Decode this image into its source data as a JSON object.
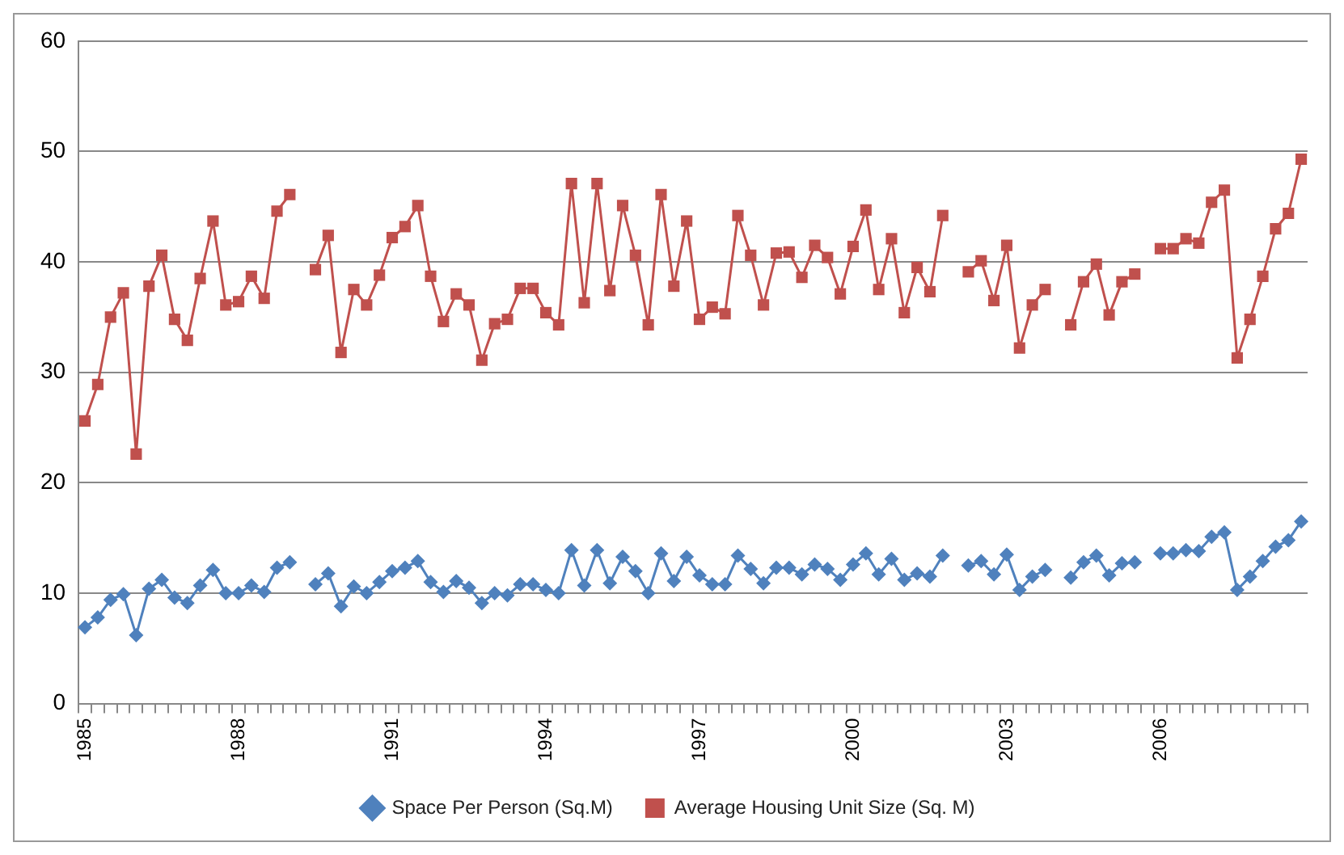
{
  "chart_data": {
    "type": "line",
    "categories": [
      "1985",
      null,
      null,
      null,
      null,
      null,
      null,
      null,
      null,
      null,
      null,
      null,
      "1988",
      null,
      null,
      null,
      null,
      null,
      null,
      null,
      null,
      null,
      null,
      null,
      "1991",
      null,
      null,
      null,
      null,
      null,
      null,
      null,
      null,
      null,
      null,
      null,
      "1994",
      null,
      null,
      null,
      null,
      null,
      null,
      null,
      null,
      null,
      null,
      null,
      "1997",
      null,
      null,
      null,
      null,
      null,
      null,
      null,
      null,
      null,
      null,
      null,
      "2000",
      null,
      null,
      null,
      null,
      null,
      null,
      null,
      null,
      null,
      null,
      null,
      "2003",
      null,
      null,
      null,
      null,
      null,
      null,
      null,
      null,
      null,
      null,
      null,
      "2006",
      null,
      null,
      null,
      null,
      null,
      null,
      null,
      null,
      null,
      null,
      null
    ],
    "series": [
      {
        "name": "Space Per Person (Sq.M)",
        "color": "#4f81bd",
        "marker": "diamond",
        "values": [
          6.9,
          7.8,
          9.4,
          9.9,
          6.2,
          10.4,
          11.2,
          9.6,
          9.1,
          10.7,
          12.1,
          10.0,
          10.0,
          10.7,
          10.1,
          12.3,
          12.8,
          null,
          10.8,
          11.8,
          8.8,
          10.6,
          10.0,
          11.0,
          12.0,
          12.3,
          12.9,
          11.0,
          10.1,
          11.1,
          10.5,
          9.1,
          10.0,
          9.8,
          10.8,
          10.8,
          10.3,
          10.0,
          13.9,
          10.7,
          13.9,
          10.9,
          13.3,
          12.0,
          10.0,
          13.6,
          11.1,
          13.3,
          11.6,
          10.8,
          10.8,
          13.4,
          12.2,
          10.9,
          12.3,
          12.3,
          11.7,
          12.6,
          12.2,
          11.2,
          12.6,
          13.6,
          11.7,
          13.1,
          11.2,
          11.8,
          11.5,
          13.4,
          null,
          12.5,
          12.9,
          11.7,
          13.5,
          10.3,
          11.5,
          12.1,
          null,
          11.4,
          12.8,
          13.4,
          11.6,
          12.7,
          12.8,
          null,
          13.6,
          13.6,
          13.9,
          13.8,
          15.1,
          15.5,
          10.3,
          11.5,
          12.9,
          14.2,
          14.8,
          16.5
        ]
      },
      {
        "name": "Average Housing Unit Size (Sq. M)",
        "color": "#c0504d",
        "marker": "square",
        "values": [
          25.6,
          28.9,
          35.0,
          37.2,
          22.6,
          37.8,
          40.6,
          34.8,
          32.9,
          38.5,
          43.7,
          36.1,
          36.4,
          38.7,
          36.7,
          44.6,
          46.1,
          null,
          39.3,
          42.4,
          31.8,
          37.5,
          36.1,
          38.8,
          42.2,
          43.2,
          45.1,
          38.7,
          34.6,
          37.1,
          36.1,
          31.1,
          34.4,
          34.8,
          37.6,
          37.6,
          35.4,
          34.3,
          47.1,
          36.3,
          47.1,
          37.4,
          45.1,
          40.6,
          34.3,
          46.1,
          37.8,
          43.7,
          34.8,
          35.9,
          35.3,
          44.2,
          40.6,
          36.1,
          40.8,
          40.9,
          38.6,
          41.5,
          40.4,
          37.1,
          41.4,
          44.7,
          37.5,
          42.1,
          35.4,
          39.5,
          37.3,
          44.2,
          null,
          39.1,
          40.1,
          36.5,
          41.5,
          32.2,
          36.1,
          37.5,
          null,
          34.3,
          38.2,
          39.8,
          35.2,
          38.2,
          38.9,
          null,
          41.2,
          41.2,
          42.1,
          41.7,
          45.4,
          46.5,
          31.3,
          34.8,
          38.7,
          43.0,
          44.4,
          49.3
        ]
      }
    ],
    "ylim": [
      0,
      60
    ],
    "yticks": [
      0,
      10,
      20,
      30,
      40,
      50,
      60
    ],
    "grid": "y",
    "legend": "bottom",
    "line_style": "solid"
  }
}
